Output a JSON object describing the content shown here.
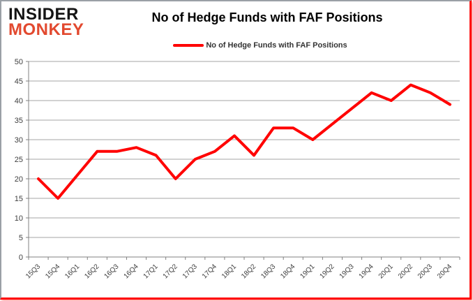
{
  "logo": {
    "line1": "INSIDER",
    "line2": "MONKEY"
  },
  "title": "No of Hedge Funds with FAF Positions",
  "legend": {
    "label": "No of Hedge Funds with FAF Positions",
    "color": "#ff0000"
  },
  "colors": {
    "line": "#ff0000",
    "logo_black": "#141414",
    "logo_red": "#e2492f",
    "gridline": "#a6a6a6",
    "axis": "#808080",
    "tick_label": "#404040",
    "frame_red": "#ff0000"
  },
  "chart_data": {
    "type": "line",
    "title": "No of Hedge Funds with FAF Positions",
    "xlabel": "",
    "ylabel": "",
    "ylim": [
      0,
      50
    ],
    "ytick_step": 5,
    "grid": "horizontal",
    "legend_position": "top",
    "categories": [
      "15Q3",
      "15Q4",
      "16Q1",
      "16Q2",
      "16Q3",
      "16Q4",
      "17Q1",
      "17Q2",
      "17Q3",
      "17Q4",
      "18Q1",
      "18Q2",
      "18Q3",
      "18Q4",
      "19Q1",
      "19Q2",
      "19Q3",
      "19Q4",
      "20Q1",
      "20Q2",
      "20Q3",
      "20Q4"
    ],
    "series": [
      {
        "name": "No of Hedge Funds with FAF Positions",
        "color": "#ff0000",
        "values": [
          20,
          15,
          21,
          27,
          27,
          28,
          26,
          20,
          25,
          27,
          31,
          26,
          33,
          33,
          30,
          34,
          38,
          42,
          40,
          44,
          42,
          39
        ]
      }
    ]
  }
}
